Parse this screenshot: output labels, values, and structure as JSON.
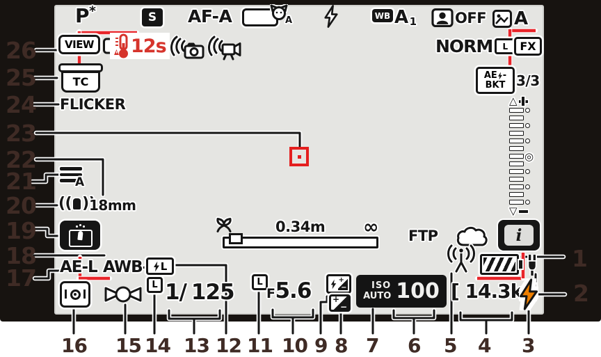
{
  "figure": {
    "type": "camera-monitor-shooting-display"
  },
  "callout_numbers": {
    "1": "1",
    "2": "2",
    "3": "3",
    "4": "4",
    "5": "5",
    "6": "6",
    "7": "7",
    "8": "8",
    "9": "9",
    "10": "10",
    "11": "11",
    "12": "12",
    "13": "13",
    "14": "14",
    "15": "15",
    "16": "16",
    "17": "17",
    "18": "18",
    "19": "19",
    "20": "20",
    "21": "21",
    "22": "22",
    "23": "23",
    "24": "24",
    "25": "25",
    "26": "26"
  },
  "ind": {
    "exposure_mode": "P",
    "flexible_program": "*",
    "shutter_type": "S",
    "focus_mode": "AF-A",
    "af_area_subject": "A",
    "wb_label": "WB",
    "wb_mode": "A",
    "wb_sub": "1",
    "portrait_balance": "OFF",
    "picture_control": "A",
    "live_view": "VIEW",
    "temp_warning": "12s",
    "image_quality": "NORM",
    "image_size": "L",
    "image_area": "FX",
    "time_code": "TC",
    "bkt_l1": "AE",
    "bkt_dash": "-",
    "bkt_l2": "BKT",
    "bkt_count": "3/3",
    "flicker": "FLICKER",
    "menu_bank": "A",
    "focal_length": "18mm",
    "distance": "0.34m",
    "infinity": "∞",
    "ftp": "FTP",
    "i_button": "i",
    "ae_lock": "AE-L",
    "awb_lock": "AWB-L",
    "fv_lock": "L",
    "ss_lock": "L",
    "ap_lock": "L",
    "ss_num": "1/",
    "ss_val": "125",
    "f_label": "F",
    "f_val": "5.6",
    "iso_label": "ISO",
    "iso_auto": "AUTO",
    "iso_val": "100",
    "remaining": "[ 14.3k ]",
    "scale_zero": "◎",
    "comp_plus": "+",
    "comp_minus": "−"
  },
  "colors": {
    "highlight_red": "#e8252a",
    "warning_red": "#d6342c",
    "flash_ready_orange": "#ee7f01",
    "screen_bg": "#e5e5e2",
    "frame_black": "#171310",
    "callout_number": "#3f2b25",
    "focus_point_red": "#e41f1f"
  }
}
